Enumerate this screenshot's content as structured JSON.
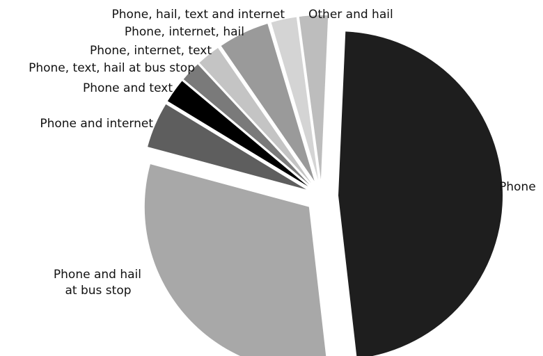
{
  "chart_data": {
    "type": "pie",
    "title": "",
    "slices": [
      {
        "label": "Phone",
        "value": 47.5,
        "color": "#1e1e1e",
        "exploded": true
      },
      {
        "label": "Phone and hail at bus stop",
        "value": 31.0,
        "color": "#a8a8a8",
        "exploded": true
      },
      {
        "label": "Phone and internet",
        "value": 4.5,
        "color": "#5e5e5e",
        "exploded": true
      },
      {
        "label": "Phone and text",
        "value": 2.4,
        "color": "#000000",
        "exploded": true
      },
      {
        "label": "Phone, text, hail at bus stop",
        "value": 2.0,
        "color": "#7a7a7a",
        "exploded": true
      },
      {
        "label": "Phone, internet, text",
        "value": 2.3,
        "color": "#c4c4c4",
        "exploded": true
      },
      {
        "label": "Phone, internet, hail",
        "value": 5.0,
        "color": "#9a9a9a",
        "exploded": true
      },
      {
        "label": "Phone, hail, text and internet",
        "value": 2.5,
        "color": "#d4d4d4",
        "exploded": true
      },
      {
        "label": "Other and hail",
        "value": 2.8,
        "color": "#bdbdbd",
        "exploded": true
      }
    ],
    "label_lines": [
      [
        "Phone"
      ],
      [
        "Phone and hail",
        "at bus stop"
      ],
      [
        "Phone and internet"
      ],
      [
        "Phone and text"
      ],
      [
        "Phone, text, hail at bus stop"
      ],
      [
        "Phone, internet, text"
      ],
      [
        "Phone, internet, hail"
      ],
      [
        "Phone, hail, text and internet"
      ],
      [
        "Other and hail"
      ]
    ],
    "legend": "none"
  }
}
